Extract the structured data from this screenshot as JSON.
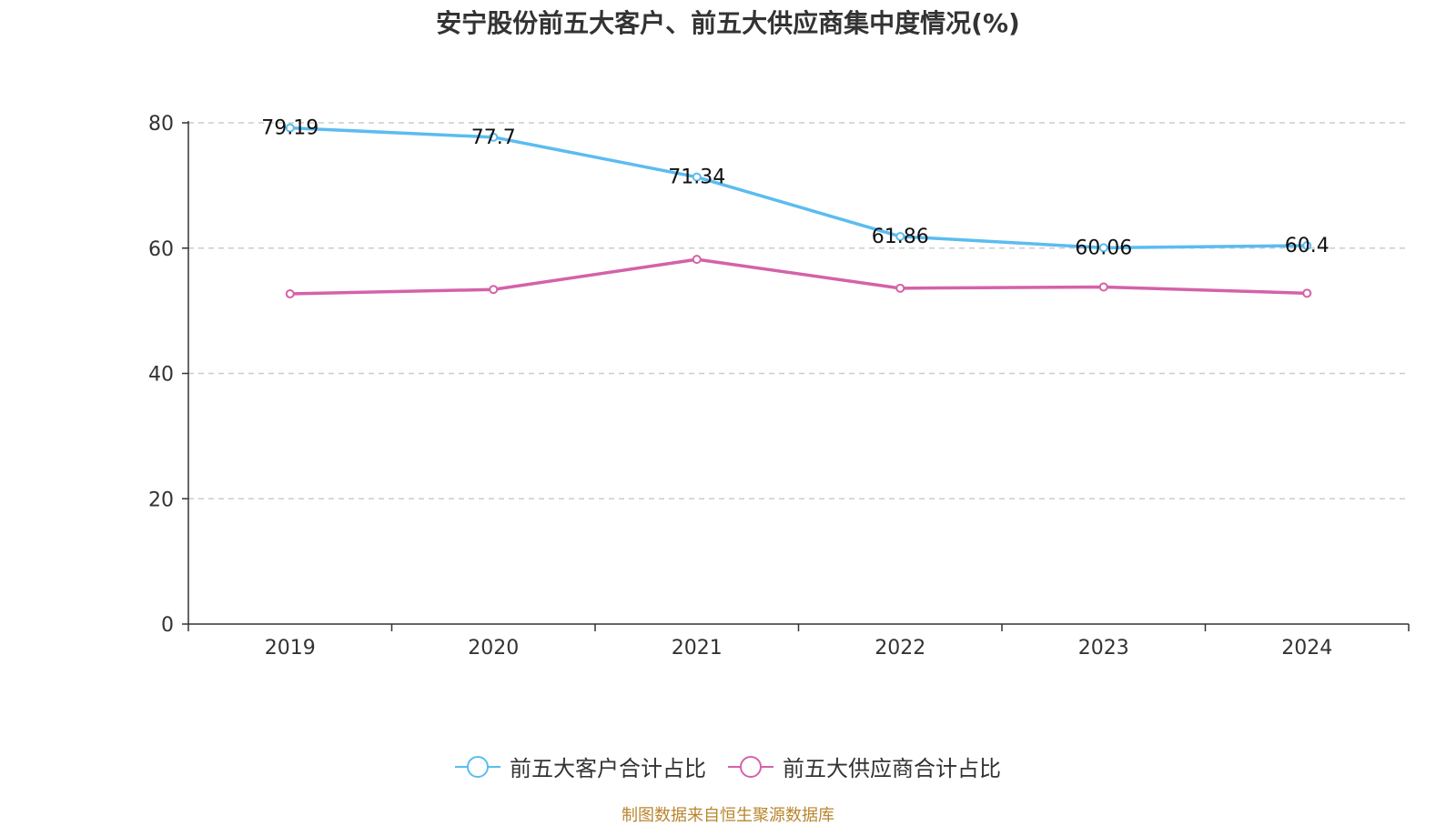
{
  "chart_data": {
    "type": "line",
    "title": "安宁股份前五大客户、前五大供应商集中度情况(%)",
    "categories": [
      "2019",
      "2020",
      "2021",
      "2022",
      "2023",
      "2024"
    ],
    "ylim": [
      0,
      80
    ],
    "yticks": [
      0,
      20,
      40,
      60,
      80
    ],
    "grid": true,
    "legend_position": "bottom",
    "series": [
      {
        "name": "前五大客户合计占比",
        "color": "#5bbcf0",
        "values": [
          79.19,
          77.7,
          71.34,
          61.86,
          60.06,
          60.4
        ],
        "show_labels": true
      },
      {
        "name": "前五大供应商合计占比",
        "color": "#d462a8",
        "values": [
          52.7,
          53.4,
          58.2,
          53.6,
          53.8,
          52.8
        ],
        "show_labels": false
      }
    ]
  },
  "source": "制图数据来自恒生聚源数据库"
}
